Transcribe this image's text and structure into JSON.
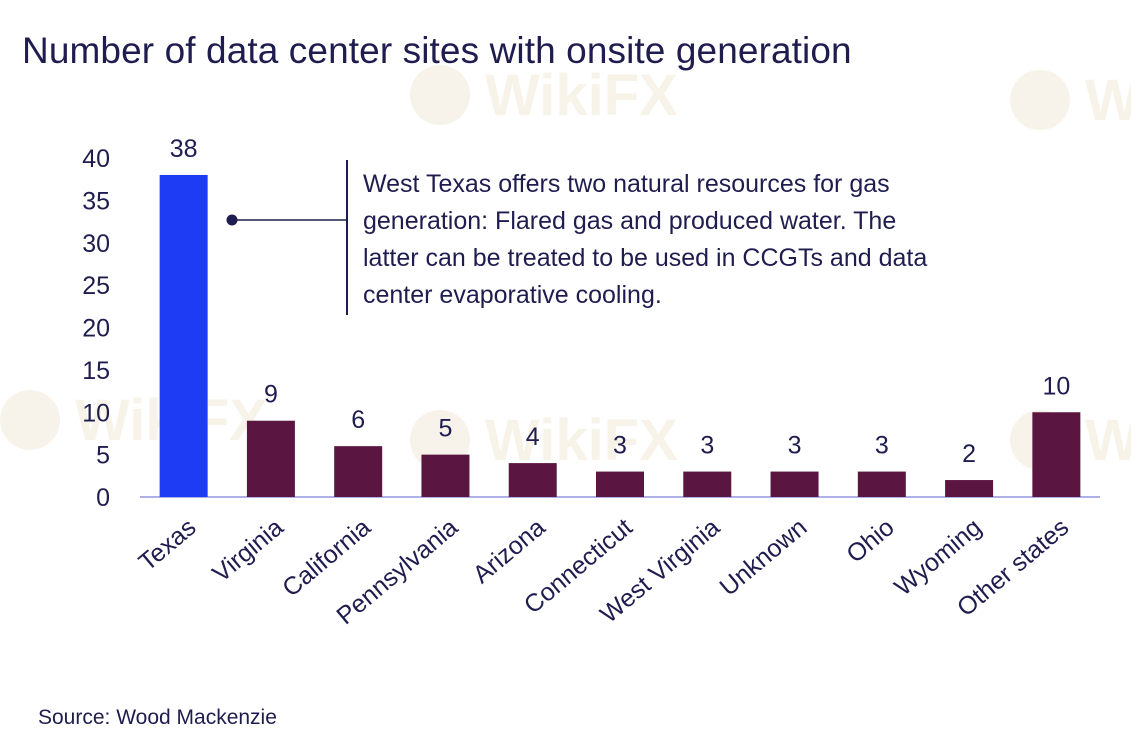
{
  "colors": {
    "highlight": "#1f3cf5",
    "bar": "#5a1640",
    "text": "#1f1d4f",
    "axis": "#aeb0e6",
    "annotation": "#1f1d4f",
    "watermark": "#f2ead8"
  },
  "chart_data": {
    "type": "bar",
    "title": "Number of data center sites with onsite generation",
    "xlabel": "",
    "ylabel": "",
    "ylim": [
      0,
      40
    ],
    "yticks": [
      0,
      5,
      10,
      15,
      20,
      25,
      30,
      35,
      40
    ],
    "grid": false,
    "legend": "none",
    "categories": [
      "Texas",
      "Virginia",
      "California",
      "Pennsylvania",
      "Arizona",
      "Connecticut",
      "West Virginia",
      "Unknown",
      "Ohio",
      "Wyoming",
      "Other states"
    ],
    "values": [
      38,
      9,
      6,
      5,
      4,
      3,
      3,
      3,
      3,
      2,
      10
    ],
    "highlighted_category": "Texas",
    "data_labels": true,
    "annotation": {
      "target": "Texas",
      "lines": [
        "West Texas offers two natural resources for gas",
        "generation: Flared gas and produced water. The",
        "latter can be treated to be used in CCGTs and data",
        "center evaporative cooling."
      ]
    }
  },
  "source": "Source: Wood Mackenzie",
  "watermark": {
    "text": "WikiFX"
  }
}
